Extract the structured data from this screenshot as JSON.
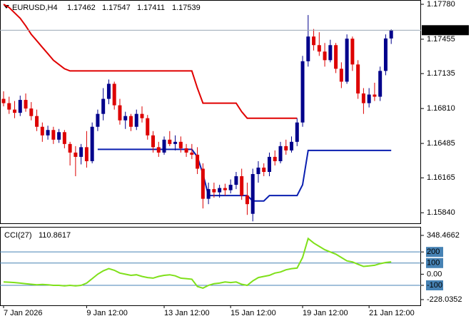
{
  "chart_data": [
    {
      "type": "candlestick",
      "symbol": "EURUSD,H4",
      "up_color": "#00008b",
      "down_color": "#dd0000",
      "open": [
        1.169,
        1.1686,
        1.168,
        1.1677,
        1.1689,
        1.1681,
        1.1674,
        1.1664,
        1.1656,
        1.1661,
        1.1652,
        1.1659,
        1.1648,
        1.164,
        1.1636,
        1.1645,
        1.1632,
        1.1664,
        1.1676,
        1.169,
        1.1704,
        1.1684,
        1.167,
        1.1674,
        1.1664,
        1.1676,
        1.1672,
        1.1656,
        1.1645,
        1.164,
        1.1652,
        1.1648,
        1.165,
        1.1644,
        1.164,
        1.1638,
        1.1625,
        1.1597,
        1.1606,
        1.1603,
        1.1607,
        1.1605,
        1.161,
        1.1618,
        1.16,
        1.1583,
        1.162,
        1.1626,
        1.1622,
        1.1636,
        1.1632,
        1.1646,
        1.1642,
        1.165,
        1.1668,
        1.1725,
        1.1748,
        1.174,
        1.1734,
        1.1726,
        1.174,
        1.1718,
        1.1706,
        1.1746,
        1.1722,
        1.1695,
        1.1686,
        1.1694,
        1.1692,
        1.1716,
        1.17462
      ],
      "high": [
        1.1697,
        1.1692,
        1.1688,
        1.1693,
        1.1695,
        1.1687,
        1.168,
        1.1668,
        1.1665,
        1.1664,
        1.1662,
        1.1661,
        1.165,
        1.1646,
        1.1648,
        1.166,
        1.1668,
        1.168,
        1.17,
        1.1708,
        1.1706,
        1.169,
        1.1678,
        1.1676,
        1.168,
        1.1683,
        1.1675,
        1.166,
        1.165,
        1.1655,
        1.166,
        1.1656,
        1.1655,
        1.1648,
        1.1648,
        1.1645,
        1.163,
        1.1612,
        1.1612,
        1.161,
        1.1611,
        1.1615,
        1.1622,
        1.1625,
        1.1612,
        1.1625,
        1.1632,
        1.163,
        1.164,
        1.1642,
        1.165,
        1.1652,
        1.1655,
        1.1672,
        1.173,
        1.1768,
        1.1755,
        1.1752,
        1.1742,
        1.1745,
        1.1742,
        1.1724,
        1.175,
        1.1748,
        1.1726,
        1.17,
        1.17,
        1.1705,
        1.172,
        1.175,
        1.17547
      ],
      "low": [
        1.1683,
        1.1676,
        1.1672,
        1.1674,
        1.1678,
        1.167,
        1.166,
        1.165,
        1.1652,
        1.1648,
        1.1649,
        1.1644,
        1.1628,
        1.1618,
        1.1629,
        1.1626,
        1.163,
        1.166,
        1.167,
        1.1685,
        1.168,
        1.1666,
        1.1662,
        1.166,
        1.1661,
        1.1668,
        1.1652,
        1.164,
        1.1636,
        1.1638,
        1.1646,
        1.1642,
        1.164,
        1.1636,
        1.1634,
        1.162,
        1.1588,
        1.1592,
        1.1598,
        1.1598,
        1.16,
        1.1602,
        1.1606,
        1.1596,
        1.1582,
        1.1576,
        1.1612,
        1.1618,
        1.1618,
        1.1628,
        1.163,
        1.1638,
        1.164,
        1.1646,
        1.1664,
        1.172,
        1.1735,
        1.173,
        1.172,
        1.1724,
        1.1714,
        1.17,
        1.1704,
        1.1716,
        1.169,
        1.1676,
        1.1682,
        1.1688,
        1.1688,
        1.1712,
        1.17411
      ],
      "close": [
        1.1686,
        1.168,
        1.1677,
        1.1689,
        1.1681,
        1.1674,
        1.1664,
        1.1656,
        1.1661,
        1.1652,
        1.1659,
        1.1648,
        1.164,
        1.1636,
        1.1645,
        1.1632,
        1.1664,
        1.1676,
        1.169,
        1.1704,
        1.1684,
        1.167,
        1.1674,
        1.1664,
        1.1676,
        1.1672,
        1.1656,
        1.1645,
        1.164,
        1.1652,
        1.1648,
        1.165,
        1.1644,
        1.164,
        1.1638,
        1.1625,
        1.1597,
        1.1606,
        1.1603,
        1.1607,
        1.1605,
        1.161,
        1.1618,
        1.16,
        1.1592,
        1.162,
        1.1626,
        1.1622,
        1.1636,
        1.1632,
        1.1646,
        1.1642,
        1.165,
        1.1668,
        1.1725,
        1.1748,
        1.174,
        1.1734,
        1.1726,
        1.174,
        1.1718,
        1.1706,
        1.1746,
        1.1722,
        1.1695,
        1.1686,
        1.1694,
        1.1692,
        1.1716,
        1.17462,
        1.17539
      ],
      "overlays": [
        {
          "color": "#e00000",
          "values": [
            1.1778,
            1.1775,
            1.177,
            1.1765,
            1.1758,
            1.175,
            1.1744,
            1.1738,
            1.1732,
            1.1726,
            1.1722,
            1.1718,
            1.1716,
            1.1716,
            1.1716,
            1.1716,
            1.1716,
            1.1716,
            1.1716,
            1.1716,
            1.1716,
            1.1716,
            1.1716,
            1.1716,
            1.1716,
            1.1716,
            1.1716,
            1.1716,
            1.1716,
            1.1716,
            1.1716,
            1.1716,
            1.1716,
            1.1716,
            1.1716,
            1.17,
            1.1686,
            1.1686,
            1.1686,
            1.1686,
            1.1686,
            1.1686,
            1.1686,
            1.1678,
            1.1672,
            1.1672,
            1.1672,
            1.1672,
            1.1672,
            1.1672,
            1.1672,
            1.1672,
            1.1672,
            1.1672,
            null,
            null,
            null,
            null,
            null,
            null,
            null,
            null,
            null,
            null,
            null,
            null,
            null,
            null,
            null,
            null,
            null
          ]
        },
        {
          "color": "#0a1fb0",
          "values": [
            null,
            null,
            null,
            null,
            null,
            null,
            null,
            null,
            null,
            null,
            null,
            null,
            null,
            null,
            null,
            null,
            null,
            1.1643,
            1.1643,
            1.1643,
            1.1643,
            1.1643,
            1.1643,
            1.1643,
            1.1643,
            1.1643,
            1.1643,
            1.1643,
            1.1643,
            1.1643,
            1.1643,
            1.1643,
            1.1643,
            1.1643,
            1.1643,
            1.1636,
            1.162,
            1.16,
            1.16,
            1.16,
            1.16,
            1.16,
            1.16,
            1.16,
            1.16,
            1.1595,
            1.1595,
            1.1595,
            1.16,
            1.16,
            1.16,
            1.16,
            1.16,
            1.16,
            1.161,
            1.1642,
            1.1642,
            1.1642,
            1.1642,
            1.1642,
            1.1642,
            1.1642,
            1.1642,
            1.1642,
            1.1642,
            1.1642,
            1.1642,
            1.1642,
            1.1642,
            1.1642,
            1.1642
          ]
        }
      ],
      "ylim": [
        1.15742,
        1.1782
      ],
      "yticks": [
        {
          "value": 1.1778,
          "label": "1.17780"
        },
        1.17455,
        1.17135,
        {
          "value": 1.1681,
          "label": "1.16810"
        },
        1.16485,
        1.16165,
        {
          "value": 1.1584,
          "label": "1.15840"
        }
      ],
      "xticks": [
        {
          "value": 0,
          "label": "7 Jan 2026"
        },
        {
          "value": 15,
          "label": "9 Jan 12:00"
        },
        {
          "value": 29,
          "label": "13 Jan 12:00"
        },
        {
          "value": 41,
          "label": "15 Jan 12:00"
        },
        {
          "value": 54,
          "label": "19 Jan 12:00"
        },
        {
          "value": 66,
          "label": "21 Jan 12:00"
        }
      ]
    },
    {
      "type": "line",
      "title": "CCI(27)",
      "color": "#7fe01a",
      "level_color": "#4682b4",
      "values": [
        -70,
        -72,
        -75,
        -80,
        -85,
        -90,
        -95,
        -92,
        -95,
        -100,
        -100,
        -105,
        -100,
        -105,
        -100,
        -80,
        -40,
        0,
        30,
        50,
        35,
        10,
        0,
        -10,
        -5,
        -20,
        -30,
        -35,
        -20,
        -10,
        -5,
        -15,
        -35,
        -40,
        -45,
        -110,
        -125,
        -100,
        -85,
        -80,
        -70,
        -75,
        -70,
        -90,
        -100,
        -60,
        -30,
        -20,
        -10,
        10,
        20,
        40,
        50,
        55,
        150,
        320,
        280,
        250,
        220,
        200,
        180,
        150,
        120,
        110,
        90,
        70,
        75,
        80,
        95,
        105,
        110.8617
      ],
      "levels": [
        200,
        100,
        -100
      ],
      "ylim": [
        -228.0352,
        348.4662
      ],
      "yticks": [
        348.4662,
        200,
        100,
        {
          "value": 0,
          "label": "0.00"
        },
        -100,
        -228.0352
      ]
    }
  ]
}
